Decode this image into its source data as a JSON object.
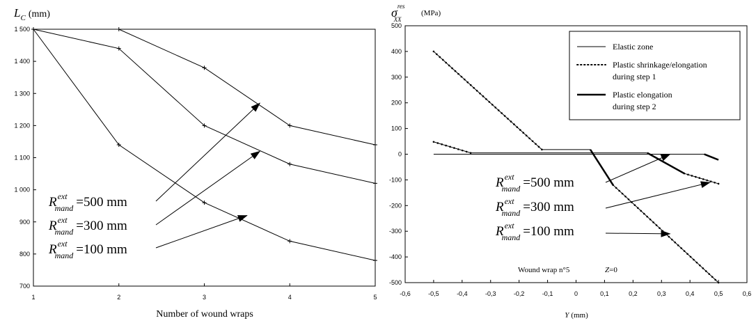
{
  "chart_data": [
    {
      "type": "line",
      "ylabel_main": "L",
      "ylabel_sub": "C",
      "ylabel_unit": "(mm)",
      "xlabel": "Number of wound wraps",
      "xlim": [
        1,
        5
      ],
      "ylim": [
        700,
        1500
      ],
      "xticks": [
        "1",
        "2",
        "3",
        "4",
        "5"
      ],
      "yticks": [
        "700",
        "800",
        "900",
        "1 000",
        "1 100",
        "1 200",
        "1 300",
        "1 400",
        "1 500"
      ],
      "grid": false,
      "series": [
        {
          "x": [
            1,
            2,
            3,
            4,
            5
          ],
          "values": [
            1500,
            1500,
            1380,
            1200,
            1140
          ]
        },
        {
          "x": [
            1,
            2,
            3,
            4,
            5
          ],
          "values": [
            1500,
            1440,
            1200,
            1080,
            1020
          ]
        },
        {
          "x": [
            1,
            2,
            3,
            4,
            5
          ],
          "values": [
            1500,
            1140,
            960,
            840,
            780
          ]
        }
      ],
      "annotations": [
        {
          "main": "R",
          "sup": "ext",
          "sub": "mand",
          "text": "=500 mm",
          "arrow_to": [
            3.65,
            1270
          ]
        },
        {
          "main": "R",
          "sup": "ext",
          "sub": "mand",
          "text": "=300 mm",
          "arrow_to": [
            3.65,
            1120
          ]
        },
        {
          "main": "R",
          "sup": "ext",
          "sub": "mand",
          "text": "=100 mm",
          "arrow_to": [
            3.5,
            920
          ]
        }
      ]
    },
    {
      "type": "line",
      "ylabel_main": "σ",
      "ylabel_sup": "res",
      "ylabel_sub": "XX",
      "ylabel_unit": "(MPa)",
      "xlabel_main": "Y",
      "xlabel_unit": "(mm)",
      "xlim": [
        -0.6,
        0.6
      ],
      "ylim": [
        -500,
        500
      ],
      "xticks": [
        "-0,6",
        "-0,5",
        "-0,4",
        "-0,3",
        "-0,2",
        "-0,1",
        "0",
        "0,1",
        "0,2",
        "0,3",
        "0,4",
        "0,5",
        "0,6"
      ],
      "yticks": [
        "-500",
        "-400",
        "-300",
        "-200",
        "-100",
        "0",
        "100",
        "200",
        "300",
        "400",
        "500"
      ],
      "grid": false,
      "legend_position": "top-right",
      "legend": [
        {
          "label": "Elastic zone",
          "style": "thin"
        },
        {
          "label": "Plastic shrinkage/elongation",
          "label2": "during step 1",
          "style": "dotted"
        },
        {
          "label": "Plastic elongation",
          "label2": "during step 2",
          "style": "thick"
        }
      ],
      "series": [
        {
          "style": "thin",
          "x": [
            -0.5,
            0.45
          ],
          "values": [
            0,
            0
          ]
        },
        {
          "style": "thin",
          "x": [
            -0.37,
            0.25
          ],
          "values": [
            5,
            5
          ]
        },
        {
          "style": "thin",
          "x": [
            -0.12,
            0.05
          ],
          "values": [
            18,
            18
          ]
        },
        {
          "style": "dotted",
          "x": [
            -0.5,
            -0.12
          ],
          "values": [
            400,
            18
          ]
        },
        {
          "style": "dotted",
          "x": [
            -0.5,
            -0.37
          ],
          "values": [
            48,
            5
          ]
        },
        {
          "style": "dotted",
          "x": [
            0.13,
            0.5
          ],
          "values": [
            -120,
            -500
          ]
        },
        {
          "style": "dotted",
          "x": [
            0.38,
            0.5
          ],
          "values": [
            -75,
            -115
          ]
        },
        {
          "style": "thick",
          "x": [
            0.05,
            0.13
          ],
          "values": [
            18,
            -120
          ]
        },
        {
          "style": "thick",
          "x": [
            0.25,
            0.38
          ],
          "values": [
            5,
            -75
          ]
        },
        {
          "style": "thick",
          "x": [
            0.45,
            0.5
          ],
          "values": [
            0,
            -22
          ]
        }
      ],
      "annotations": [
        {
          "main": "R",
          "sup": "ext",
          "sub": "mand",
          "text": "=500 mm",
          "arrow_to": [
            0.33,
            0
          ]
        },
        {
          "main": "R",
          "sup": "ext",
          "sub": "mand",
          "text": "=300 mm",
          "arrow_to": [
            0.47,
            -110
          ]
        },
        {
          "main": "R",
          "sup": "ext",
          "sub": "mand",
          "text": "=100 mm",
          "arrow_to": [
            0.33,
            -310
          ]
        }
      ],
      "note_wrap": "Wound wrap  n°5",
      "note_z_main": "Z",
      "note_z_value": "=0"
    }
  ]
}
